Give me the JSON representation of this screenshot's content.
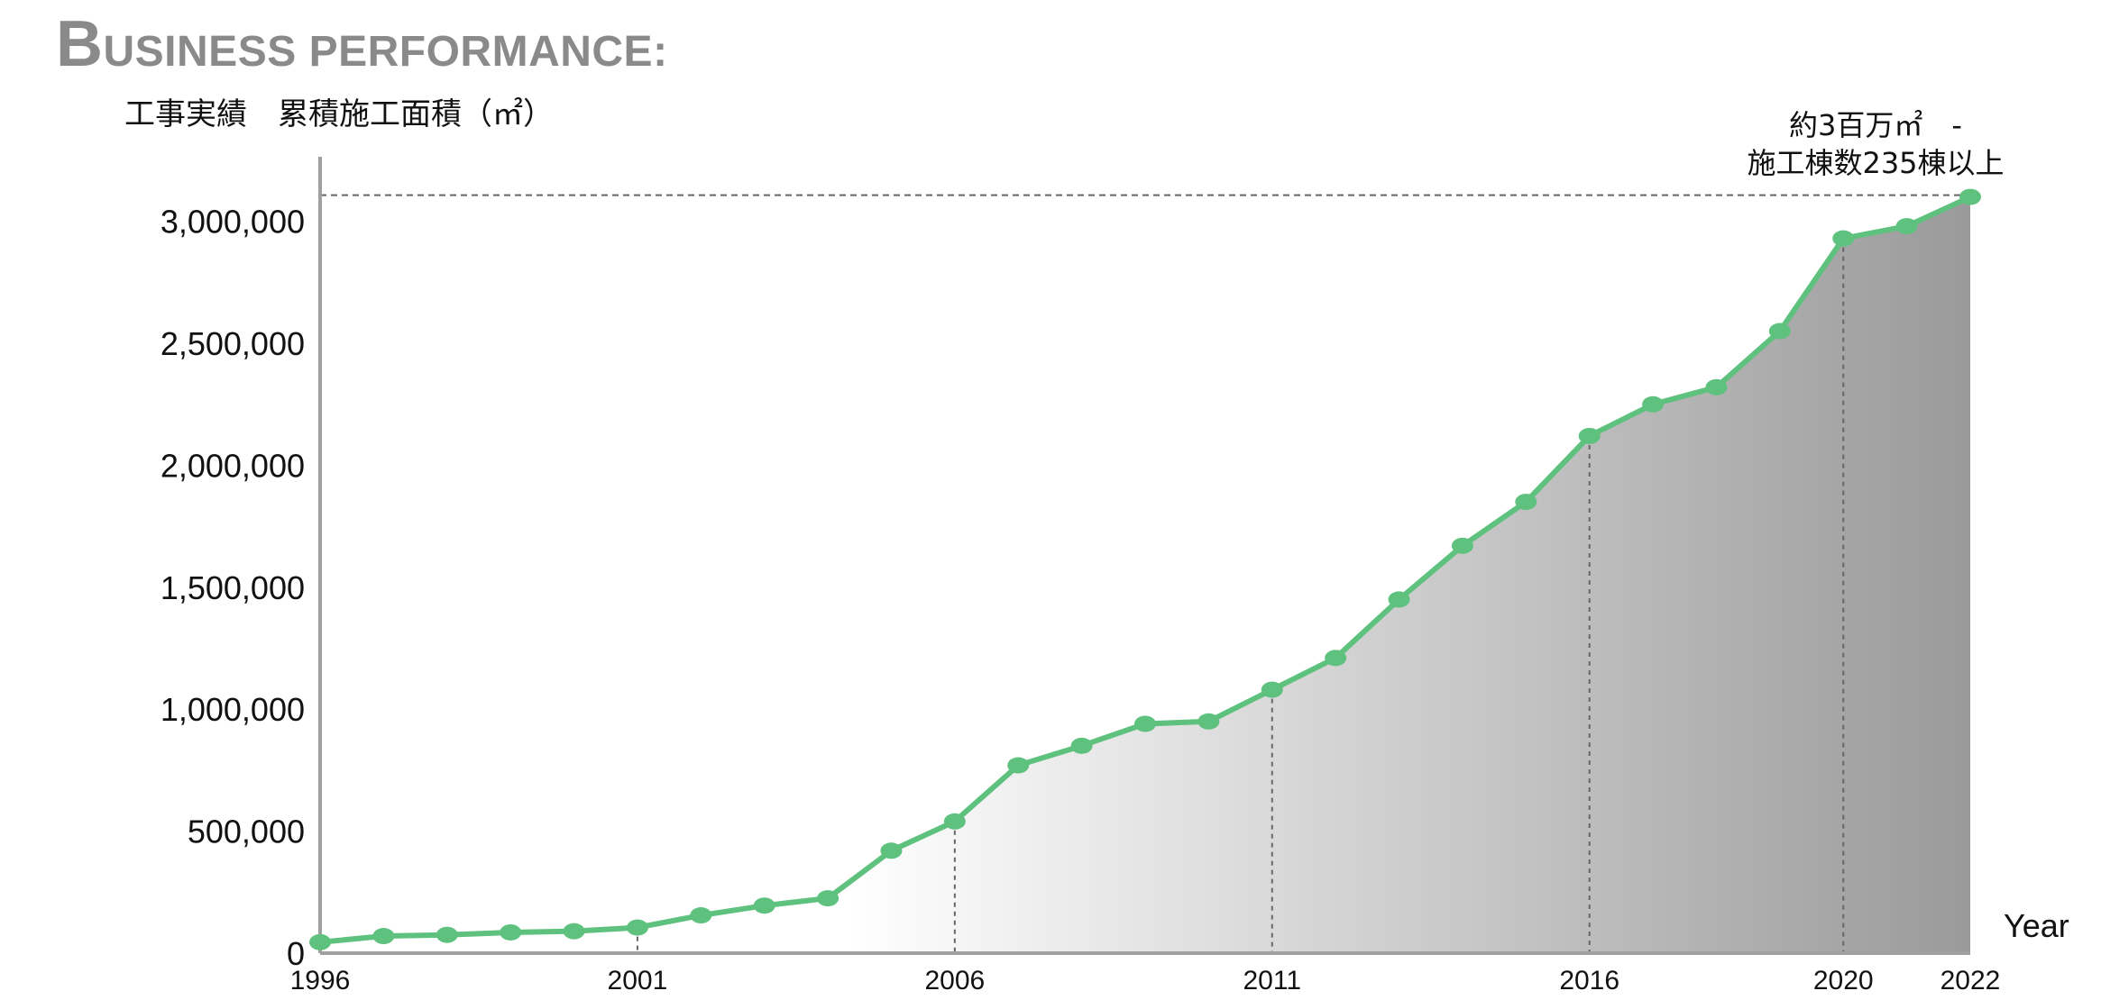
{
  "page": {
    "title_initial": "B",
    "title_rest": "USINESS PERFORMANCE:"
  },
  "chart_data": {
    "type": "area",
    "ylabel": "工事実績　累積施工面積（㎡）",
    "xlabel": "Year",
    "x": [
      1996,
      1997,
      1998,
      1999,
      2000,
      2001,
      2002,
      2003,
      2004,
      2005,
      2006,
      2007,
      2008,
      2009,
      2010,
      2011,
      2012,
      2013,
      2014,
      2015,
      2016,
      2017,
      2018,
      2019,
      2020,
      2021,
      2022
    ],
    "values": [
      45000,
      70000,
      75000,
      85000,
      90000,
      105000,
      155000,
      195000,
      225000,
      420000,
      540000,
      770000,
      850000,
      940000,
      950000,
      1080000,
      1210000,
      1450000,
      1670000,
      1850000,
      2120000,
      2250000,
      2320000,
      2550000,
      2930000,
      2980000,
      3100000
    ],
    "x_ticks": [
      "1996",
      "2001",
      "2006",
      "2011",
      "2016",
      "2020",
      "2022"
    ],
    "y_ticks": [
      "0",
      "500,000",
      "1,000,000",
      "1,500,000",
      "2,000,000",
      "2,500,000",
      "3,000,000"
    ],
    "ylim": [
      0,
      3250000
    ],
    "xlim": [
      1996,
      2022
    ],
    "highlight_years": [
      2001,
      2006,
      2011,
      2016,
      2020
    ],
    "annotation": {
      "line1": "約3百万㎡　-",
      "line2": "施工棟数235棟以上"
    },
    "colors": {
      "line": "#5ec27e",
      "marker": "#5ec27e",
      "fill_start": "#ffffff",
      "fill_end": "#9a9a9a",
      "axis": "#a0a0a0",
      "guide": "#666666",
      "title": "#8a8a8a"
    },
    "legend": "none",
    "grid": false
  }
}
